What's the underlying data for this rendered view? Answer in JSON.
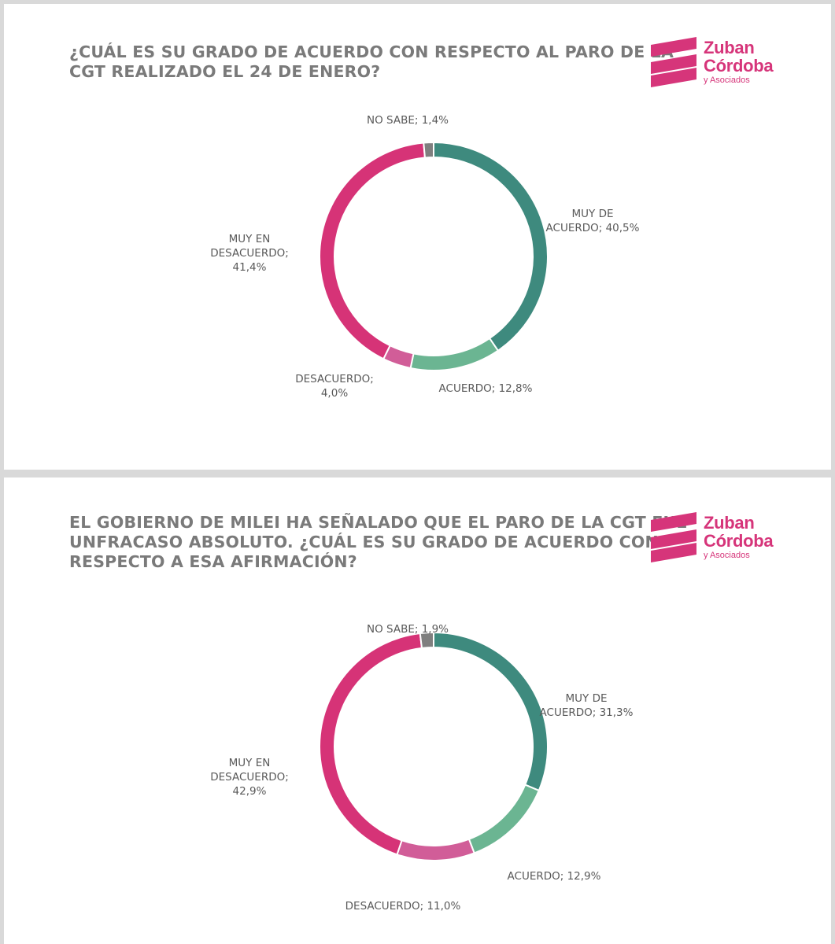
{
  "colors": {
    "muy_de_acuerdo": "#3e8a7e",
    "acuerdo": "#6bb592",
    "desacuerdo": "#d15d98",
    "muy_en_desacuerdo": "#d63377",
    "no_sabe": "#7f7f7f",
    "brand": "#d6357a"
  },
  "logo": {
    "icon": "zuban-cordoba-stripes-logo",
    "line1": "Zuban",
    "line2": "Córdoba",
    "line3": "y Asociados"
  },
  "panels": [
    {
      "title_lines": [
        "¿CUÁL ES SU GRADO DE ACUERDO CON RESPECTO AL PARO DE LA",
        "CGT REALIZADO EL 24 DE ENERO?"
      ],
      "labels": [
        [
          "MUY DE",
          "ACUERDO; 40,5%"
        ],
        [
          "ACUERDO; 12,8%"
        ],
        [
          "DESACUERDO;",
          "4,0%"
        ],
        [
          "MUY EN",
          "DESACUERDO;",
          "41,4%"
        ],
        [
          "NO SABE; 1,4%"
        ]
      ]
    },
    {
      "title_lines": [
        "EL GOBIERNO DE MILEI HA SEÑALADO QUE EL PARO DE LA CGT FUE",
        "UNFRACASO ABSOLUTO. ¿CUÁL ES SU GRADO DE ACUERDO CON",
        "RESPECTO A ESA AFIRMACIÓN?"
      ],
      "labels": [
        [
          "MUY DE",
          "ACUERDO; 31,3%"
        ],
        [
          "ACUERDO; 12,9%"
        ],
        [
          "DESACUERDO; 11,0%"
        ],
        [
          "MUY EN",
          "DESACUERDO;",
          "42,9%"
        ],
        [
          "NO SABE; 1,9%"
        ]
      ]
    }
  ],
  "chart_data": [
    {
      "type": "pie",
      "variant": "donut",
      "title": "¿CUÁL ES SU GRADO DE ACUERDO CON RESPECTO AL PARO DE LA CGT REALIZADO EL 24 DE ENERO?",
      "categories": [
        "MUY DE ACUERDO",
        "ACUERDO",
        "DESACUERDO",
        "MUY EN DESACUERDO",
        "NO SABE"
      ],
      "values": [
        40.5,
        12.8,
        4.0,
        41.4,
        1.4
      ],
      "unit": "%",
      "legend": "none"
    },
    {
      "type": "pie",
      "variant": "donut",
      "title": "EL GOBIERNO DE MILEI HA SEÑALADO QUE EL PARO DE LA CGT FUE UNFRACASO ABSOLUTO. ¿CUÁL ES SU GRADO DE ACUERDO CON RESPECTO A ESA AFIRMACIÓN?",
      "categories": [
        "MUY DE ACUERDO",
        "ACUERDO",
        "DESACUERDO",
        "MUY EN DESACUERDO",
        "NO SABE"
      ],
      "values": [
        31.3,
        12.9,
        11.0,
        42.9,
        1.9
      ],
      "unit": "%",
      "legend": "none"
    }
  ]
}
